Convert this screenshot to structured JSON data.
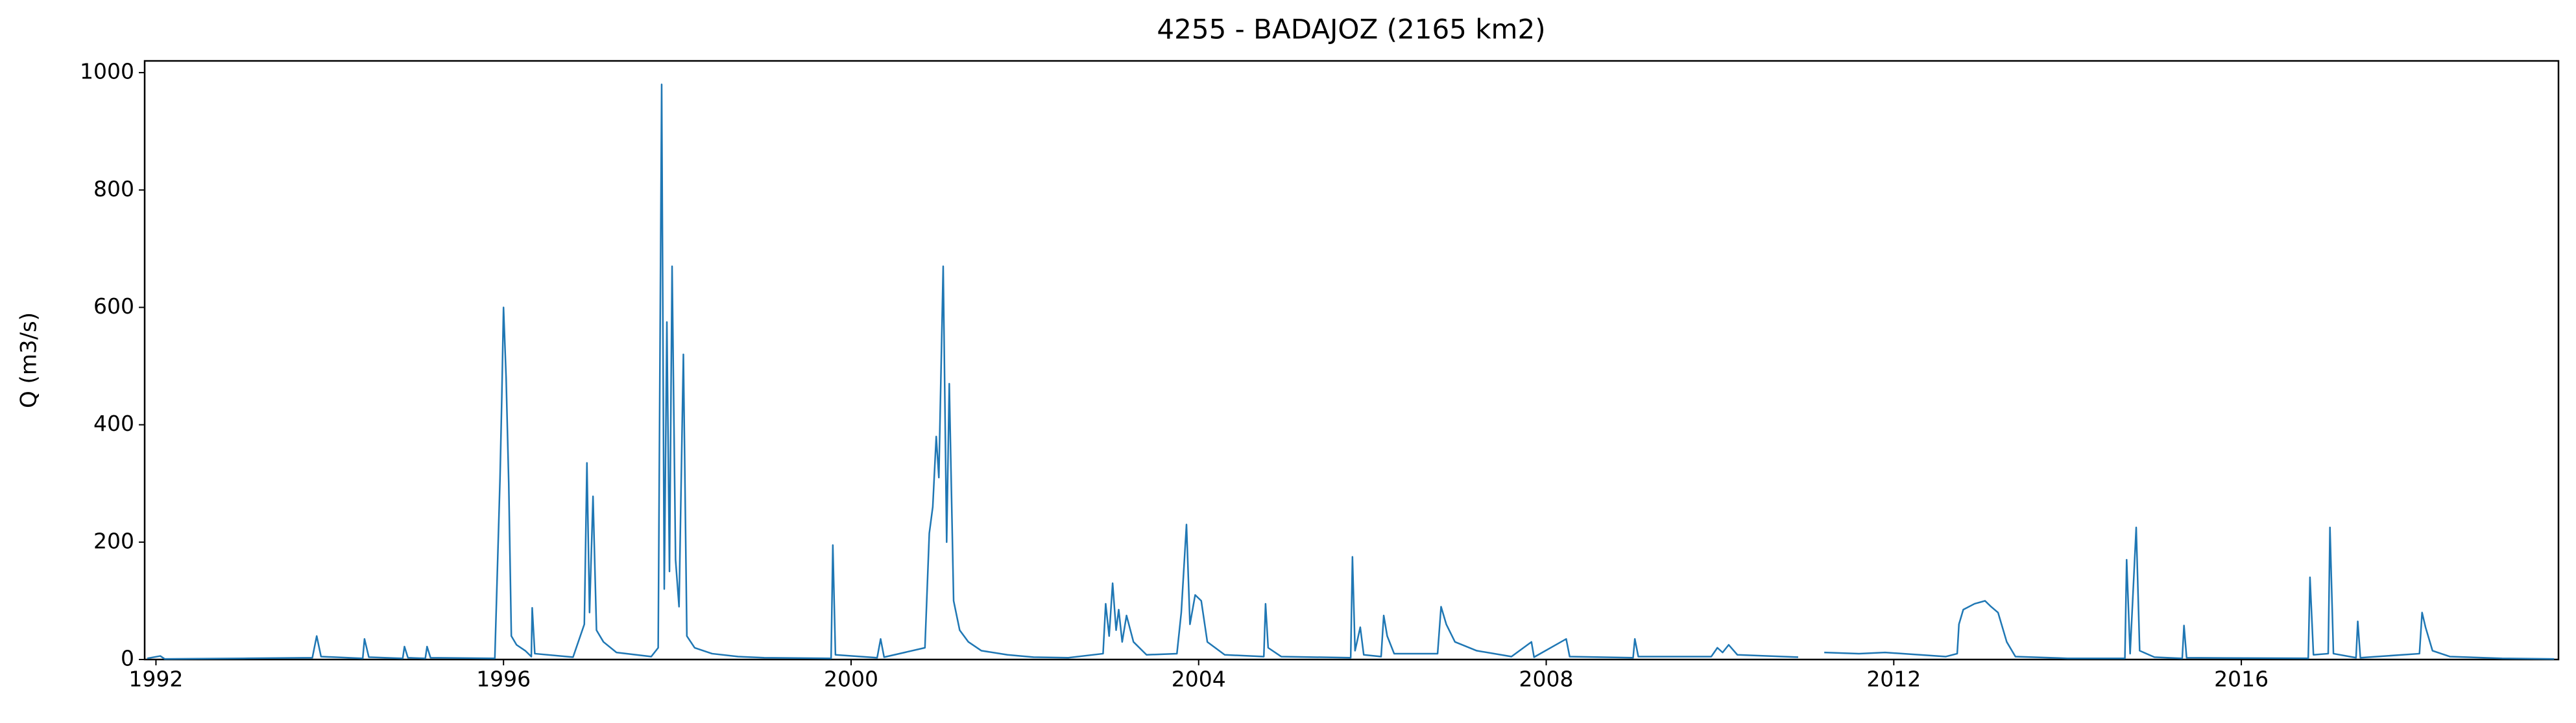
{
  "chart_data": {
    "type": "line",
    "title": "4255 - BADAJOZ (2165 km2)",
    "y_label": "Q (m3/s)",
    "xlim": [
      1991.87,
      2019.65
    ],
    "xticks": [
      1992,
      1996,
      2000,
      2004,
      2008,
      2012,
      2016
    ],
    "ylim": [
      0,
      1020
    ],
    "yticks": [
      0,
      200,
      400,
      600,
      800,
      1000
    ],
    "grid": false,
    "series": [
      {
        "color": "#1f77b4",
        "x": [
          1991.9,
          1992.05,
          1992.1,
          1993.0,
          1993.8,
          1993.85,
          1993.9,
          1994.38,
          1994.4,
          1994.45,
          1994.84,
          1994.86,
          1994.9,
          1995.1,
          1995.12,
          1995.16,
          1995.9,
          1995.96,
          1995.98,
          1996.0,
          1996.03,
          1996.06,
          1996.09,
          1996.15,
          1996.25,
          1996.32,
          1996.33,
          1996.36,
          1996.8,
          1996.93,
          1996.96,
          1996.99,
          1997.03,
          1997.07,
          1997.15,
          1997.3,
          1997.7,
          1997.78,
          1997.82,
          1997.85,
          1997.88,
          1997.91,
          1997.94,
          1997.98,
          1998.02,
          1998.07,
          1998.11,
          1998.2,
          1998.4,
          1998.7,
          1999.0,
          1999.77,
          1999.79,
          1999.82,
          2000.3,
          2000.34,
          2000.38,
          2000.85,
          2000.9,
          2000.94,
          2000.98,
          2001.01,
          2001.06,
          2001.1,
          2001.13,
          2001.18,
          2001.25,
          2001.35,
          2001.5,
          2001.8,
          2002.1,
          2002.5,
          2002.9,
          2002.93,
          2002.97,
          2003.01,
          2003.05,
          2003.08,
          2003.12,
          2003.17,
          2003.25,
          2003.4,
          2003.75,
          2003.8,
          2003.86,
          2003.9,
          2003.96,
          2004.03,
          2004.1,
          2004.3,
          2004.75,
          2004.77,
          2004.8,
          2004.95,
          2005.75,
          2005.77,
          2005.8,
          2005.86,
          2005.9,
          2006.1,
          2006.13,
          2006.17,
          2006.25,
          2006.75,
          2006.79,
          2006.85,
          2006.95,
          2007.2,
          2007.6,
          2007.83,
          2007.86,
          2008.23,
          2008.27,
          2009.0,
          2009.02,
          2009.06,
          2009.9,
          2009.97,
          2010.03,
          2010.1,
          2010.2,
          2010.9,
          2011.0,
          2011.2,
          2011.6,
          2011.9,
          2012.3,
          2012.6,
          2012.73,
          2012.75,
          2012.8,
          2012.93,
          2013.05,
          2013.12,
          2013.2,
          2013.3,
          2013.4,
          2014.0,
          2014.66,
          2014.68,
          2014.72,
          2014.79,
          2014.83,
          2015.0,
          2015.32,
          2015.34,
          2015.37,
          2016.77,
          2016.79,
          2016.83,
          2017.0,
          2017.02,
          2017.06,
          2017.32,
          2017.34,
          2017.37,
          2018.05,
          2018.08,
          2018.12,
          2018.2,
          2018.4,
          2019.0,
          2019.6
        ],
        "values": [
          2,
          6,
          1,
          2,
          3,
          40,
          5,
          2,
          35,
          4,
          2,
          22,
          3,
          2,
          22,
          3,
          2,
          310,
          445,
          600,
          480,
          300,
          40,
          25,
          15,
          5,
          88,
          10,
          4,
          60,
          335,
          80,
          278,
          50,
          30,
          12,
          5,
          20,
          980,
          120,
          575,
          150,
          670,
          170,
          90,
          520,
          40,
          20,
          10,
          5,
          3,
          2,
          195,
          8,
          3,
          35,
          4,
          20,
          215,
          260,
          380,
          310,
          670,
          200,
          470,
          100,
          50,
          30,
          15,
          8,
          4,
          3,
          10,
          95,
          40,
          130,
          50,
          85,
          30,
          75,
          30,
          8,
          10,
          80,
          230,
          60,
          110,
          100,
          30,
          8,
          5,
          95,
          20,
          5,
          3,
          175,
          15,
          55,
          8,
          5,
          75,
          40,
          10,
          10,
          90,
          60,
          30,
          15,
          5,
          30,
          4,
          35,
          5,
          3,
          35,
          5,
          5,
          20,
          12,
          25,
          8,
          4,
          null,
          12,
          10,
          12,
          8,
          5,
          10,
          60,
          85,
          95,
          100,
          90,
          80,
          30,
          5,
          2,
          2,
          170,
          10,
          225,
          15,
          4,
          2,
          58,
          3,
          2,
          140,
          8,
          10,
          225,
          10,
          3,
          65,
          3,
          10,
          80,
          55,
          15,
          5,
          2,
          1
        ]
      }
    ]
  }
}
